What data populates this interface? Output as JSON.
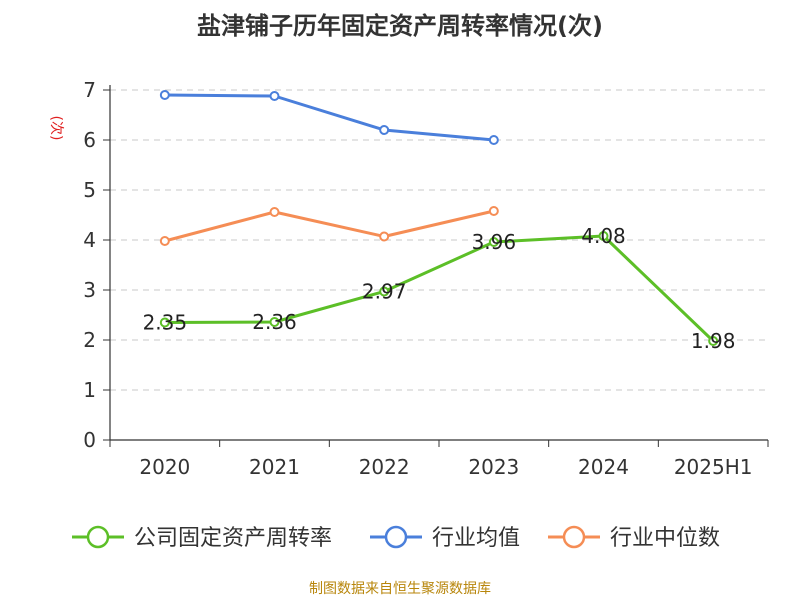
{
  "title": "盐津铺子历年固定资产周转率情况(次)",
  "source": "制图数据来自恒生聚源数据库",
  "colors": {
    "company": "#5cbf27",
    "industry_avg": "#4a7fdb",
    "industry_median": "#f58d55",
    "ylabel": "#e02020",
    "source": "#b8860b"
  },
  "chart_data": {
    "type": "line",
    "title": "盐津铺子历年固定资产周转率情况(次)",
    "ylabel": "(次)",
    "xlabel": "",
    "categories": [
      "2020",
      "2021",
      "2022",
      "2023",
      "2024",
      "2025H1"
    ],
    "y_ticks": [
      "0",
      "1",
      "2",
      "3",
      "4",
      "5",
      "6",
      "7"
    ],
    "ylim": [
      0,
      7
    ],
    "grid": "horizontal-dashed",
    "legend_position": "bottom",
    "series": [
      {
        "name": "公司固定资产周转率",
        "key": "company",
        "values": [
          2.35,
          2.36,
          2.97,
          3.96,
          4.08,
          1.98
        ],
        "labels": [
          "2.35",
          "2.36",
          "2.97",
          "3.96",
          "4.08",
          "1.98"
        ]
      },
      {
        "name": "行业均值",
        "key": "industry_avg",
        "values": [
          6.9,
          6.88,
          6.2,
          6.0,
          null,
          null
        ]
      },
      {
        "name": "行业中位数",
        "key": "industry_median",
        "values": [
          3.98,
          4.56,
          4.07,
          4.58,
          null,
          null
        ]
      }
    ]
  }
}
